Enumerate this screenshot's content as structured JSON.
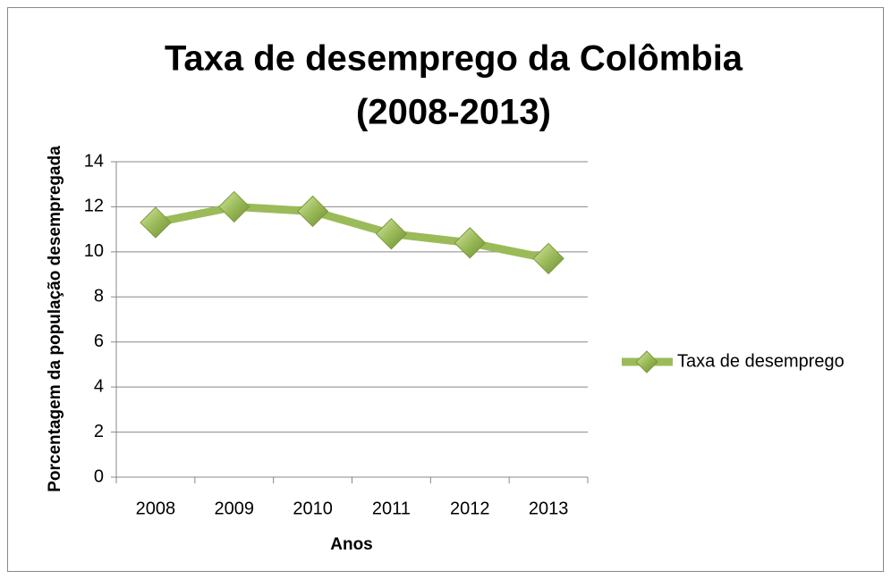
{
  "chart_data": {
    "type": "line",
    "title": [
      "Taxa de desemprego da Colômbia",
      "(2008-2013)"
    ],
    "xlabel": "Anos",
    "ylabel": "Porcentagem da população desempregada",
    "categories": [
      "2008",
      "2009",
      "2010",
      "2011",
      "2012",
      "2013"
    ],
    "series": [
      {
        "name": "Taxa de desemprego",
        "color": "#9bbb59",
        "values": [
          11.3,
          12.0,
          11.8,
          10.8,
          10.4,
          9.7
        ]
      }
    ],
    "ylim": [
      0,
      14
    ],
    "yticks": [
      0,
      2,
      4,
      6,
      8,
      10,
      12,
      14
    ],
    "grid": true,
    "legend": "right"
  }
}
